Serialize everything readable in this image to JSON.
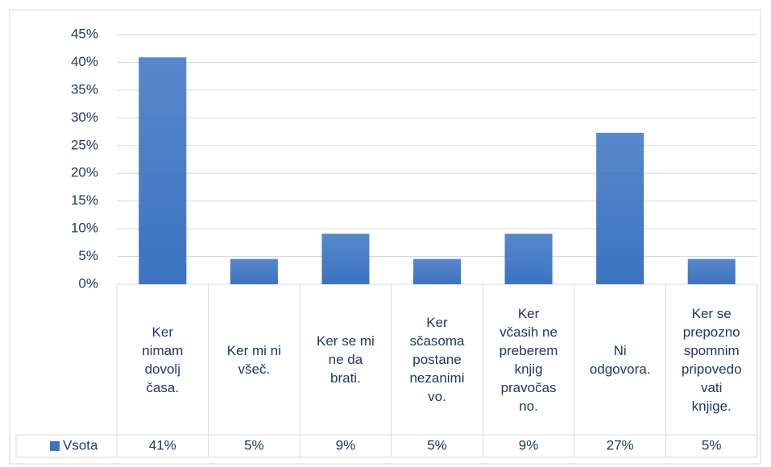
{
  "chart_data": {
    "type": "bar",
    "categories": [
      "Ker nimam dovolj časa.",
      "Ker mi ni všeč.",
      "Ker se mi ne da brati.",
      "Ker sčasoma postane nezanimivo.",
      "Ker včasih ne preberem knjig pravočasno.",
      "Ni odgovora.",
      "Ker se prepozno spomnim pripovedovati knjige."
    ],
    "series": [
      {
        "name": "Vsota",
        "color": "#3b73c1",
        "values": [
          40.9,
          4.55,
          9.1,
          4.55,
          9.1,
          27.3,
          4.55
        ],
        "value_labels": [
          "41%",
          "5%",
          "9%",
          "5%",
          "9%",
          "27%",
          "5%"
        ]
      }
    ],
    "ylim": [
      0,
      45
    ],
    "yticks": [
      {
        "value": 0,
        "label": "0%"
      },
      {
        "value": 5,
        "label": "5%"
      },
      {
        "value": 10,
        "label": "10%"
      },
      {
        "value": 15,
        "label": "15%"
      },
      {
        "value": 20,
        "label": "20%"
      },
      {
        "value": 25,
        "label": "25%"
      },
      {
        "value": 30,
        "label": "30%"
      },
      {
        "value": 35,
        "label": "35%"
      },
      {
        "value": 40,
        "label": "40%"
      },
      {
        "value": 45,
        "label": "45%"
      }
    ],
    "grid": true,
    "data_table": true
  }
}
